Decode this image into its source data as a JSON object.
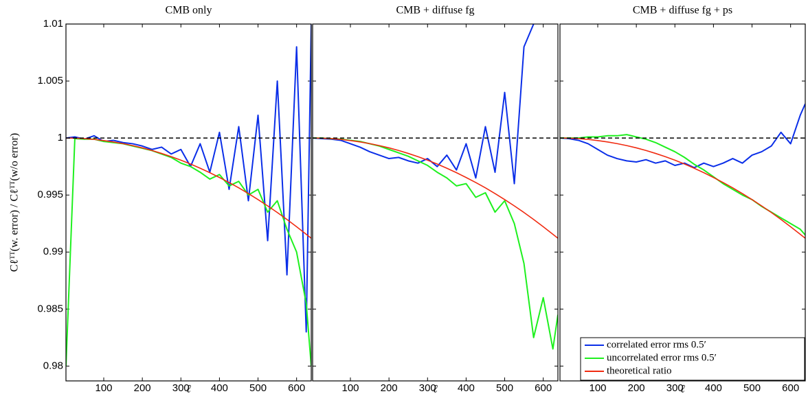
{
  "chart_data": [
    {
      "type": "line",
      "title": "CMB only",
      "xlabel": "ℓ",
      "ylabel": "Cℓᵀᵀ(w. error) / Cℓᵀᵀ(w/o error)",
      "x": [
        2,
        25,
        50,
        75,
        100,
        125,
        150,
        175,
        200,
        225,
        250,
        275,
        300,
        325,
        350,
        375,
        400,
        425,
        450,
        475,
        500,
        525,
        550,
        575,
        600,
        625,
        638
      ],
      "series": [
        {
          "color": "#0a2ee8",
          "values": [
            1.0,
            1.0001,
            0.9999,
            1.0002,
            0.9997,
            0.9998,
            0.9996,
            0.9995,
            0.9993,
            0.999,
            0.9992,
            0.9986,
            0.999,
            0.9975,
            0.9995,
            0.997,
            1.0005,
            0.9955,
            1.001,
            0.9945,
            1.002,
            0.991,
            1.005,
            0.988,
            1.008,
            0.983,
            1.01
          ]
        },
        {
          "color": "#1ef01e",
          "values": [
            0.98,
            0.99995,
            0.9999,
            0.9999,
            0.9997,
            0.9996,
            0.9995,
            0.9993,
            0.9991,
            0.9989,
            0.9986,
            0.9983,
            0.9978,
            0.9975,
            0.997,
            0.9964,
            0.9968,
            0.9958,
            0.9962,
            0.995,
            0.9955,
            0.9935,
            0.9945,
            0.992,
            0.99,
            0.9855,
            0.98
          ]
        },
        {
          "color": "#f02a10",
          "values": [
            1.0,
            0.99999,
            0.99995,
            0.99988,
            0.99978,
            0.99966,
            0.99951,
            0.99934,
            0.99914,
            0.99891,
            0.99865,
            0.99837,
            0.99806,
            0.99772,
            0.99735,
            0.99696,
            0.99654,
            0.9961,
            0.99563,
            0.99513,
            0.9946,
            0.99405,
            0.99347,
            0.99286,
            0.99222,
            0.99156,
            0.99121
          ]
        }
      ],
      "hline": 1,
      "xlim": [
        2,
        638
      ],
      "ylim": [
        0.9787,
        1.01
      ],
      "xticks": [
        100,
        200,
        300,
        400,
        500,
        600
      ],
      "yticks": [
        0.98,
        0.985,
        0.99,
        0.995,
        1,
        1.005,
        1.01
      ],
      "ytick_labels": true
    },
    {
      "type": "line",
      "title": "CMB + diffuse fg",
      "xlabel": "ℓ",
      "x": [
        2,
        25,
        50,
        75,
        100,
        125,
        150,
        175,
        200,
        225,
        250,
        275,
        300,
        325,
        350,
        375,
        400,
        425,
        450,
        475,
        500,
        525,
        550,
        575,
        600,
        625,
        638
      ],
      "series": [
        {
          "color": "#0a2ee8",
          "values": [
            1.0,
            0.99995,
            0.9999,
            0.9998,
            0.9995,
            0.9992,
            0.9988,
            0.9985,
            0.9982,
            0.9983,
            0.998,
            0.9978,
            0.9982,
            0.9975,
            0.9985,
            0.9972,
            0.9995,
            0.9965,
            1.001,
            0.997,
            1.004,
            0.996,
            1.008,
            1.01,
            null,
            null,
            null
          ]
        },
        {
          "color": "#1ef01e",
          "values": [
            1.0,
            1.0,
            0.99995,
            0.9999,
            0.9998,
            0.9997,
            0.9995,
            0.9993,
            0.999,
            0.9987,
            0.9984,
            0.998,
            0.9976,
            0.997,
            0.9965,
            0.9958,
            0.996,
            0.9948,
            0.9952,
            0.9935,
            0.9945,
            0.9925,
            0.989,
            0.9825,
            0.986,
            0.9815,
            0.9845
          ]
        },
        {
          "color": "#f02a10",
          "values": [
            1.0,
            0.99999,
            0.99995,
            0.99988,
            0.99978,
            0.99966,
            0.99951,
            0.99934,
            0.99914,
            0.99891,
            0.99865,
            0.99837,
            0.99806,
            0.99772,
            0.99735,
            0.99696,
            0.99654,
            0.9961,
            0.99563,
            0.99513,
            0.9946,
            0.99405,
            0.99347,
            0.99286,
            0.99222,
            0.99156,
            0.99121
          ]
        }
      ],
      "hline": 1,
      "xlim": [
        2,
        638
      ],
      "ylim": [
        0.9787,
        1.01
      ],
      "xticks": [
        100,
        200,
        300,
        400,
        500,
        600
      ],
      "yticks": [
        0.98,
        0.985,
        0.99,
        0.995,
        1,
        1.005,
        1.01
      ],
      "ytick_labels": false
    },
    {
      "type": "line",
      "title": "CMB + diffuse fg + ps",
      "xlabel": "ℓ",
      "x": [
        2,
        25,
        50,
        75,
        100,
        125,
        150,
        175,
        200,
        225,
        250,
        275,
        300,
        325,
        350,
        375,
        400,
        425,
        450,
        475,
        500,
        525,
        550,
        575,
        600,
        625,
        638
      ],
      "series": [
        {
          "name": "correlated error rms 0.5′",
          "color": "#0a2ee8",
          "values": [
            1.0,
            0.99995,
            0.9998,
            0.9995,
            0.999,
            0.9985,
            0.9982,
            0.998,
            0.9979,
            0.9981,
            0.9978,
            0.998,
            0.9976,
            0.9978,
            0.9974,
            0.9978,
            0.9975,
            0.9978,
            0.9982,
            0.9978,
            0.9985,
            0.9988,
            0.9993,
            1.0005,
            0.9995,
            1.002,
            1.003
          ]
        },
        {
          "name": "uncorrelated error rms 0.5′",
          "color": "#1ef01e",
          "values": [
            1.0,
            1.0,
            1.0,
            1.0001,
            1.0001,
            1.0002,
            1.0002,
            1.0003,
            1.0001,
            0.9999,
            0.9996,
            0.9992,
            0.9988,
            0.9983,
            0.9977,
            0.9972,
            0.9966,
            0.996,
            0.9955,
            0.995,
            0.9946,
            0.994,
            0.9935,
            0.993,
            0.9925,
            0.992,
            0.9915
          ]
        },
        {
          "name": "theoretical ratio",
          "color": "#f02a10",
          "values": [
            1.0,
            0.99999,
            0.99995,
            0.99988,
            0.99978,
            0.99966,
            0.99951,
            0.99934,
            0.99914,
            0.99891,
            0.99865,
            0.99837,
            0.99806,
            0.99772,
            0.99735,
            0.99696,
            0.99654,
            0.9961,
            0.99563,
            0.99513,
            0.9946,
            0.99405,
            0.99347,
            0.99286,
            0.99222,
            0.99156,
            0.99121
          ]
        }
      ],
      "hline": 1,
      "xlim": [
        2,
        638
      ],
      "ylim": [
        0.9787,
        1.01
      ],
      "xticks": [
        100,
        200,
        300,
        400,
        500,
        600
      ],
      "yticks": [
        0.98,
        0.985,
        0.99,
        0.995,
        1,
        1.005,
        1.01
      ],
      "ytick_labels": false,
      "legend": "lower right"
    }
  ]
}
